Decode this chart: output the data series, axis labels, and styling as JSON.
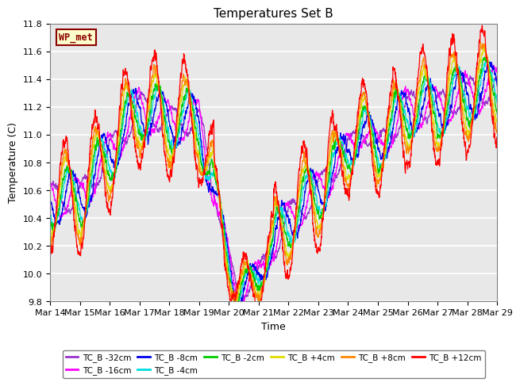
{
  "title": "Temperatures Set B",
  "xlabel": "Time",
  "ylabel": "Temperature (C)",
  "ylim": [
    9.8,
    11.8
  ],
  "background_color": "#e8e8e8",
  "legend_box_color": "#ffffcc",
  "legend_box_edge": "#8b0000",
  "wp_met_label": "WP_met",
  "series": [
    {
      "label": "TC_B -32cm",
      "color": "#9933cc",
      "amp": 0.1,
      "lag": 0.6,
      "noise": 0.025
    },
    {
      "label": "TC_B -16cm",
      "color": "#ff00ff",
      "amp": 0.14,
      "lag": 0.4,
      "noise": 0.03
    },
    {
      "label": "TC_B -8cm",
      "color": "#0000ee",
      "amp": 0.18,
      "lag": 0.25,
      "noise": 0.035
    },
    {
      "label": "TC_B -4cm",
      "color": "#00dddd",
      "amp": 0.2,
      "lag": 0.15,
      "noise": 0.035
    },
    {
      "label": "TC_B -2cm",
      "color": "#00cc00",
      "amp": 0.22,
      "lag": 0.1,
      "noise": 0.035
    },
    {
      "label": "TC_B +4cm",
      "color": "#dddd00",
      "amp": 0.28,
      "lag": 0.05,
      "noise": 0.04
    },
    {
      "label": "TC_B +8cm",
      "color": "#ff8800",
      "amp": 0.32,
      "lag": 0.02,
      "noise": 0.045
    },
    {
      "label": "TC_B +12cm",
      "color": "#ff0000",
      "amp": 0.42,
      "lag": 0.0,
      "noise": 0.055
    }
  ],
  "xtick_labels": [
    "Mar 14",
    "Mar 15",
    "Mar 16",
    "Mar 17",
    "Mar 18",
    "Mar 19",
    "Mar 20",
    "Mar 21",
    "Mar 22",
    "Mar 23",
    "Mar 24",
    "Mar 25",
    "Mar 26",
    "Mar 27",
    "Mar 28",
    "Mar 29"
  ],
  "num_points": 3000,
  "seed": 7
}
